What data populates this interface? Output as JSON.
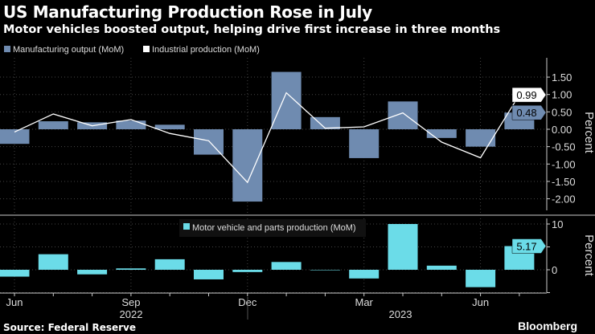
{
  "title": "US Manufacturing Production Rose in July",
  "subtitle": "Motor vehicles boosted output, helping drive first increase in three months",
  "source": "Source: Federal Reserve",
  "brand": "Bloomberg",
  "chart_data": [
    {
      "type": "bar+line",
      "ylabel": "Percent",
      "ylim": [
        -2.4,
        2.05
      ],
      "yticks": [
        "1.50",
        "1.00",
        "0.50",
        "0.00",
        "-0.50",
        "-1.00",
        "-1.50",
        "-2.00"
      ],
      "categories": [
        "2022-06",
        "2022-07",
        "2022-08",
        "2022-09",
        "2022-10",
        "2022-11",
        "2022-12",
        "2023-01",
        "2023-02",
        "2023-03",
        "2023-04",
        "2023-05",
        "2023-06",
        "2023-07"
      ],
      "series": [
        {
          "name": "Manufacturing output (MoM)",
          "type": "bar",
          "color": "#6f8bb0",
          "values": [
            -0.42,
            0.23,
            0.2,
            0.25,
            0.13,
            -0.73,
            -2.08,
            1.65,
            0.35,
            -0.83,
            0.8,
            -0.25,
            -0.5,
            0.48
          ],
          "last_label": "0.48"
        },
        {
          "name": "Industrial production (MoM)",
          "type": "line",
          "color": "#ffffff",
          "values": [
            -0.08,
            0.44,
            0.1,
            0.28,
            -0.12,
            -0.33,
            -1.53,
            1.05,
            0.03,
            0.07,
            0.47,
            -0.37,
            -0.82,
            0.99
          ],
          "last_label": "0.99"
        }
      ]
    },
    {
      "type": "bar",
      "ylabel": "Percent",
      "ylim": [
        -5,
        11.6
      ],
      "yticks": [
        "10",
        "0"
      ],
      "series": [
        {
          "name": "Motor vehicle and parts production (MoM)",
          "color": "#6bdce8",
          "values": [
            -1.5,
            3.4,
            -1.0,
            0.3,
            2.3,
            -2.1,
            -0.5,
            1.7,
            -0.1,
            -1.9,
            10.0,
            0.9,
            -3.8,
            5.17
          ],
          "last_label": "5.17"
        }
      ]
    }
  ],
  "xaxis": {
    "ticks": [
      "Jun",
      "Sep",
      "Dec",
      "Mar",
      "Jun"
    ],
    "years": [
      "2022",
      "2023"
    ]
  }
}
